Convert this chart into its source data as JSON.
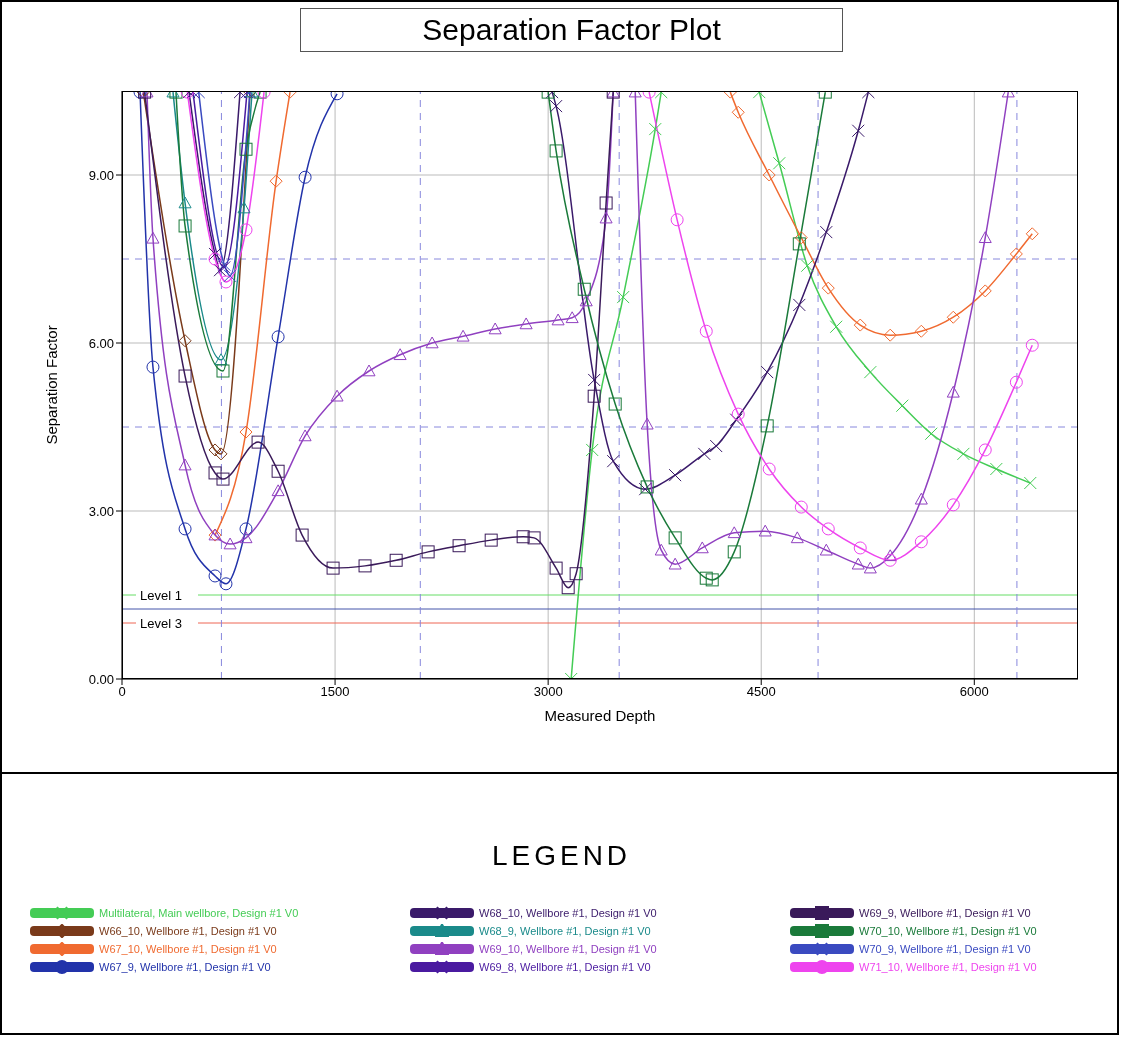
{
  "chart_data": {
    "type": "line",
    "title": "Separation Factor Plot",
    "xlabel": "Measured Depth",
    "ylabel": "Separation Factor",
    "legend_title": "LEGEND",
    "legend": "bottom",
    "grid": true,
    "line_style": "solid",
    "xlim": [
      0,
      6730
    ],
    "xticks": [
      0,
      1500,
      3000,
      4500,
      6000
    ],
    "ylim": [
      0,
      10.5
    ],
    "yticks": [
      {
        "value": 0,
        "label": "0.00"
      },
      {
        "value": 3,
        "label": "3.00"
      },
      {
        "value": 6,
        "label": "6.00"
      },
      {
        "value": 9,
        "label": "9.00"
      }
    ],
    "ref_lines": [
      {
        "axis": "y",
        "value": 1.5,
        "label": "Level 1",
        "color": "#66dd66",
        "line_style": "solid"
      },
      {
        "axis": "y",
        "value": 1.25,
        "label": null,
        "color": "#4455aa",
        "line_style": "solid"
      },
      {
        "axis": "y",
        "value": 1,
        "label": "Level 3",
        "color": "#ee6655",
        "line_style": "solid"
      },
      {
        "axis": "y",
        "value": 4.5,
        "label": null,
        "color": "#8888dd",
        "line_style": "dashed"
      },
      {
        "axis": "y",
        "value": 7.5,
        "label": null,
        "color": "#8888dd",
        "line_style": "dashed"
      },
      {
        "axis": "x",
        "value": 700,
        "label": null,
        "color": "#8888dd",
        "line_style": "dashed"
      },
      {
        "axis": "x",
        "value": 2100,
        "label": null,
        "color": "#8888dd",
        "line_style": "dashed"
      },
      {
        "axis": "x",
        "value": 3500,
        "label": null,
        "color": "#8888dd",
        "line_style": "dashed"
      },
      {
        "axis": "x",
        "value": 4900,
        "label": null,
        "color": "#8888dd",
        "line_style": "dashed"
      },
      {
        "axis": "x",
        "value": 6300,
        "label": null,
        "color": "#8888dd",
        "line_style": "dashed"
      }
    ],
    "series": [
      {
        "name": "Multilateral, Main wellbore, Design #1 V0",
        "color": "#44cc55",
        "marker": "cross",
        "x": [
          3162,
          3310,
          3528,
          3754,
          3796,
          4100,
          4486,
          4627,
          4824,
          5028,
          5268,
          5493,
          5697,
          5923,
          6155,
          6394
        ],
        "values": [
          0,
          4.09,
          6.82,
          9.82,
          10.48,
          null,
          10.48,
          9.21,
          7.38,
          6.29,
          5.48,
          4.88,
          4.38,
          4.02,
          3.75,
          3.5
        ]
      },
      {
        "name": "W66_10, Wellbore #1, Design #1 V0",
        "color": "#7a3a1a",
        "marker": "diamond",
        "x": [
          150,
          444,
          655,
          697,
          901
        ],
        "values": [
          10.48,
          6.04,
          4.09,
          4.02,
          10.48
        ]
      },
      {
        "name": "W67_10, Wellbore #1, Design #1 V0",
        "color": "#f06a30",
        "marker": "diamond",
        "x": [
          655,
          873,
          1085,
          1183,
          2500,
          4282,
          4338,
          4556,
          4782,
          4972,
          5197,
          5408,
          5627,
          5852,
          6077,
          6296,
          6408
        ],
        "values": [
          2.57,
          4.41,
          8.89,
          10.48,
          null,
          10.48,
          10.12,
          9.0,
          7.88,
          6.98,
          6.32,
          6.14,
          6.21,
          6.46,
          6.93,
          7.59,
          7.95
        ]
      },
      {
        "name": "W67_9, Wellbore #1, Design #1 V0",
        "color": "#2233aa",
        "marker": "circle",
        "x": [
          127,
          218,
          444,
          655,
          732,
          873,
          1099,
          1289,
          1514
        ],
        "values": [
          10.48,
          5.57,
          2.68,
          1.84,
          1.7,
          2.68,
          6.11,
          8.96,
          10.45
        ]
      },
      {
        "name": "W68_10, Wellbore #1, Design #1 V0",
        "color": "#3a1a6a",
        "marker": "cross",
        "x": [
          472,
          655,
          690,
          831,
          2000,
          3028,
          3056,
          3324,
          3458,
          3683,
          3894,
          4099,
          4183,
          4324,
          4542,
          4768,
          4958,
          5183,
          5254
        ],
        "values": [
          10.48,
          7.59,
          7.3,
          10.48,
          null,
          10.48,
          10.23,
          5.34,
          3.89,
          3.39,
          3.64,
          4.02,
          4.16,
          4.63,
          5.48,
          6.68,
          7.98,
          9.79,
          10.48
        ]
      },
      {
        "name": "W68_9, Wellbore #1, Design #1 V0",
        "color": "#1a8a8a",
        "marker": "triangle",
        "x": [
          359,
          444,
          697,
          859,
          915
        ],
        "values": [
          10.48,
          8.5,
          5.7,
          8.41,
          10.48
        ]
      },
      {
        "name": "W69_10, Wellbore #1, Design #1 V0",
        "color": "#9040c0",
        "marker": "triangle",
        "x": [
          176,
          218,
          444,
          655,
          761,
          873,
          1099,
          1289,
          1514,
          1739,
          1958,
          2183,
          2401,
          2627,
          2845,
          3070,
          3169,
          3268,
          3408,
          3458,
          3530,
          3613,
          3697,
          3796,
          3894,
          4085,
          4310,
          4528,
          4754,
          4958,
          5183,
          5268,
          5408,
          5627,
          5852,
          6077,
          6239
        ],
        "values": [
          10.48,
          7.87,
          3.82,
          2.57,
          2.41,
          2.52,
          3.36,
          4.34,
          5.05,
          5.5,
          5.79,
          6.0,
          6.12,
          6.25,
          6.34,
          6.41,
          6.45,
          6.75,
          8.23,
          10.48,
          null,
          10.48,
          4.55,
          2.3,
          2.05,
          2.34,
          2.61,
          2.64,
          2.52,
          2.3,
          2.05,
          1.98,
          2.2,
          3.21,
          5.12,
          7.88,
          10.48
        ]
      },
      {
        "name": "W69_8, Wellbore #1, Design #1 V0",
        "color": "#4a1aa0",
        "marker": "cross",
        "x": [
          500,
          720,
          880
        ],
        "values": [
          10.48,
          7.35,
          10.48
        ]
      },
      {
        "name": "W69_9, Wellbore #1, Design #1 V0",
        "color": "#3a1a5a",
        "marker": "square",
        "x": [
          159,
          444,
          655,
          711,
          958,
          1099,
          1268,
          1486,
          1711,
          1930,
          2155,
          2373,
          2599,
          2824,
          2901,
          3056,
          3141,
          3197,
          3324,
          3408,
          3458
        ],
        "values": [
          10.48,
          5.41,
          3.68,
          3.57,
          4.23,
          3.71,
          2.57,
          1.98,
          2.02,
          2.12,
          2.27,
          2.38,
          2.48,
          2.54,
          2.52,
          1.98,
          1.63,
          1.88,
          5.05,
          8.5,
          10.48
        ]
      },
      {
        "name": "W70_10, Wellbore #1, Design #1 V0",
        "color": "#1a7a3a",
        "marker": "square",
        "x": [
          380,
          444,
          711,
          873,
          972,
          2000,
          3000,
          3056,
          3254,
          3472,
          3697,
          3894,
          4113,
          4155,
          4310,
          4542,
          4768,
          4951
        ],
        "values": [
          10.48,
          8.09,
          5.5,
          9.46,
          10.48,
          null,
          10.48,
          9.43,
          6.96,
          4.91,
          3.43,
          2.52,
          1.8,
          1.77,
          2.27,
          4.52,
          7.77,
          10.48
        ]
      },
      {
        "name": "W70_9, Wellbore #1, Design #1 V0",
        "color": "#3a4ac0",
        "marker": "cross",
        "x": [
          540,
          720,
          760,
          900
        ],
        "values": [
          10.48,
          7.4,
          7.2,
          10.48
        ]
      },
      {
        "name": "W71_10, Wellbore #1, Design #1 V0",
        "color": "#ee44ee",
        "marker": "circle",
        "x": [
          460,
          655,
          732,
          873,
          1000,
          2000,
          3711,
          3908,
          4113,
          4338,
          4556,
          4782,
          4972,
          5197,
          5408,
          5627,
          5852,
          6077,
          6296,
          6408
        ],
        "values": [
          10.48,
          7.5,
          7.09,
          8.02,
          10.48,
          null,
          10.48,
          8.2,
          6.21,
          4.73,
          3.75,
          3.07,
          2.68,
          2.34,
          2.12,
          2.45,
          3.11,
          4.09,
          5.3,
          5.96
        ]
      }
    ]
  }
}
